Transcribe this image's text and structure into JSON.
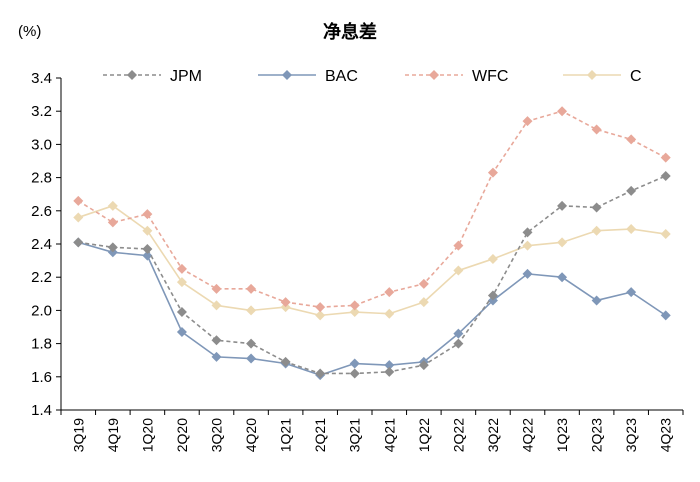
{
  "chart_data": {
    "type": "line",
    "title": "净息差",
    "ylabel": "(%)",
    "xlabel": "",
    "ylim": [
      1.4,
      3.4
    ],
    "yticks": [
      "1.4",
      "1.6",
      "1.8",
      "2.0",
      "2.2",
      "2.4",
      "2.6",
      "2.8",
      "3.0",
      "3.2",
      "3.4"
    ],
    "grid": false,
    "legend_position": "top",
    "categories": [
      "3Q19",
      "4Q19",
      "1Q20",
      "2Q20",
      "3Q20",
      "4Q20",
      "1Q21",
      "2Q21",
      "3Q21",
      "4Q21",
      "1Q22",
      "2Q22",
      "3Q22",
      "4Q22",
      "1Q23",
      "2Q23",
      "3Q23",
      "4Q23"
    ],
    "series": [
      {
        "name": "JPM",
        "color": "#8c8c8c",
        "dashed": true,
        "values": [
          2.41,
          2.38,
          2.37,
          1.99,
          1.82,
          1.8,
          1.69,
          1.62,
          1.62,
          1.63,
          1.67,
          1.8,
          2.09,
          2.47,
          2.63,
          2.62,
          2.72,
          2.81
        ]
      },
      {
        "name": "BAC",
        "color": "#7f97b8",
        "dashed": false,
        "values": [
          2.41,
          2.35,
          2.33,
          1.87,
          1.72,
          1.71,
          1.68,
          1.61,
          1.68,
          1.67,
          1.69,
          1.86,
          2.06,
          2.22,
          2.2,
          2.06,
          2.11,
          1.97
        ]
      },
      {
        "name": "WFC",
        "color": "#e8a89a",
        "dashed": true,
        "values": [
          2.66,
          2.53,
          2.58,
          2.25,
          2.13,
          2.13,
          2.05,
          2.02,
          2.03,
          2.11,
          2.16,
          2.39,
          2.83,
          3.14,
          3.2,
          3.09,
          3.03,
          2.92
        ]
      },
      {
        "name": "C",
        "color": "#ecd9b2",
        "dashed": false,
        "values": [
          2.56,
          2.63,
          2.48,
          2.17,
          2.03,
          2.0,
          2.02,
          1.97,
          1.99,
          1.98,
          2.05,
          2.24,
          2.31,
          2.39,
          2.41,
          2.48,
          2.49,
          2.46
        ]
      }
    ]
  }
}
